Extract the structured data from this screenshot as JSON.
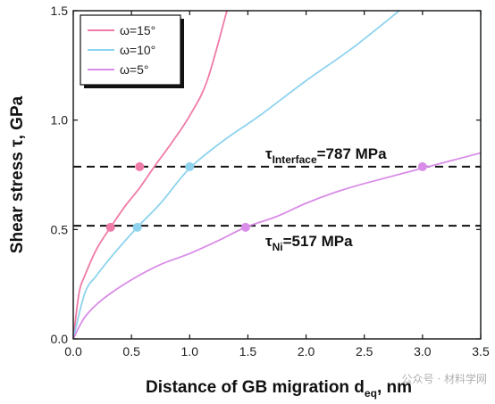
{
  "chart_data": {
    "type": "line",
    "xlabel": "Distance of GB migration d",
    "xlabel_sub": "eq",
    "xlabel_unit": ", nm",
    "ylabel": "Shear stress τ, GPa",
    "xlim": [
      0.0,
      3.5
    ],
    "ylim": [
      0.0,
      1.5
    ],
    "x_ticks": [
      "0.0",
      "0.5",
      "1.0",
      "1.5",
      "2.0",
      "2.5",
      "3.0",
      "3.5"
    ],
    "y_ticks": [
      "0.0",
      "0.5",
      "1.0",
      "1.5"
    ],
    "legend_position": "top-left",
    "series": [
      {
        "name": "ω=15°",
        "color": "#f07aa8",
        "x": [
          0,
          0.05,
          0.1,
          0.2,
          0.32,
          0.45,
          0.57,
          0.7,
          0.85,
          1.0,
          1.15,
          1.32
        ],
        "y": [
          0,
          0.21,
          0.29,
          0.41,
          0.51,
          0.61,
          0.69,
          0.79,
          0.9,
          1.02,
          1.18,
          1.5
        ]
      },
      {
        "name": "ω=10°",
        "color": "#8ed3ee",
        "x": [
          0,
          0.1,
          0.2,
          0.35,
          0.55,
          0.75,
          1.0,
          1.3,
          1.6,
          2.0,
          2.4,
          2.8
        ],
        "y": [
          0,
          0.21,
          0.29,
          0.39,
          0.51,
          0.62,
          0.78,
          0.91,
          1.02,
          1.18,
          1.33,
          1.5
        ]
      },
      {
        "name": "ω=5°",
        "color": "#d98ce8",
        "x": [
          0,
          0.1,
          0.25,
          0.5,
          0.75,
          1.0,
          1.25,
          1.48,
          1.75,
          2.0,
          2.25,
          2.5,
          3.0,
          3.5
        ],
        "y": [
          0,
          0.1,
          0.18,
          0.27,
          0.34,
          0.39,
          0.45,
          0.51,
          0.56,
          0.62,
          0.67,
          0.71,
          0.78,
          0.85
        ]
      }
    ],
    "hlines": [
      {
        "y": 0.787,
        "label": "τ",
        "label_sub": "Interface",
        "label_tail": "=787 MPa"
      },
      {
        "y": 0.517,
        "label": "τ",
        "label_sub": "Ni",
        "label_tail": "=517 MPa"
      }
    ],
    "markers": [
      {
        "x": 0.32,
        "y": 0.51,
        "color": "#f07aa8"
      },
      {
        "x": 0.57,
        "y": 0.787,
        "color": "#f07aa8"
      },
      {
        "x": 0.55,
        "y": 0.51,
        "color": "#8ed3ee"
      },
      {
        "x": 1.0,
        "y": 0.787,
        "color": "#8ed3ee"
      },
      {
        "x": 1.48,
        "y": 0.51,
        "color": "#d98ce8"
      },
      {
        "x": 3.0,
        "y": 0.787,
        "color": "#d98ce8"
      }
    ]
  },
  "watermark": "公众号 · 材料学网"
}
